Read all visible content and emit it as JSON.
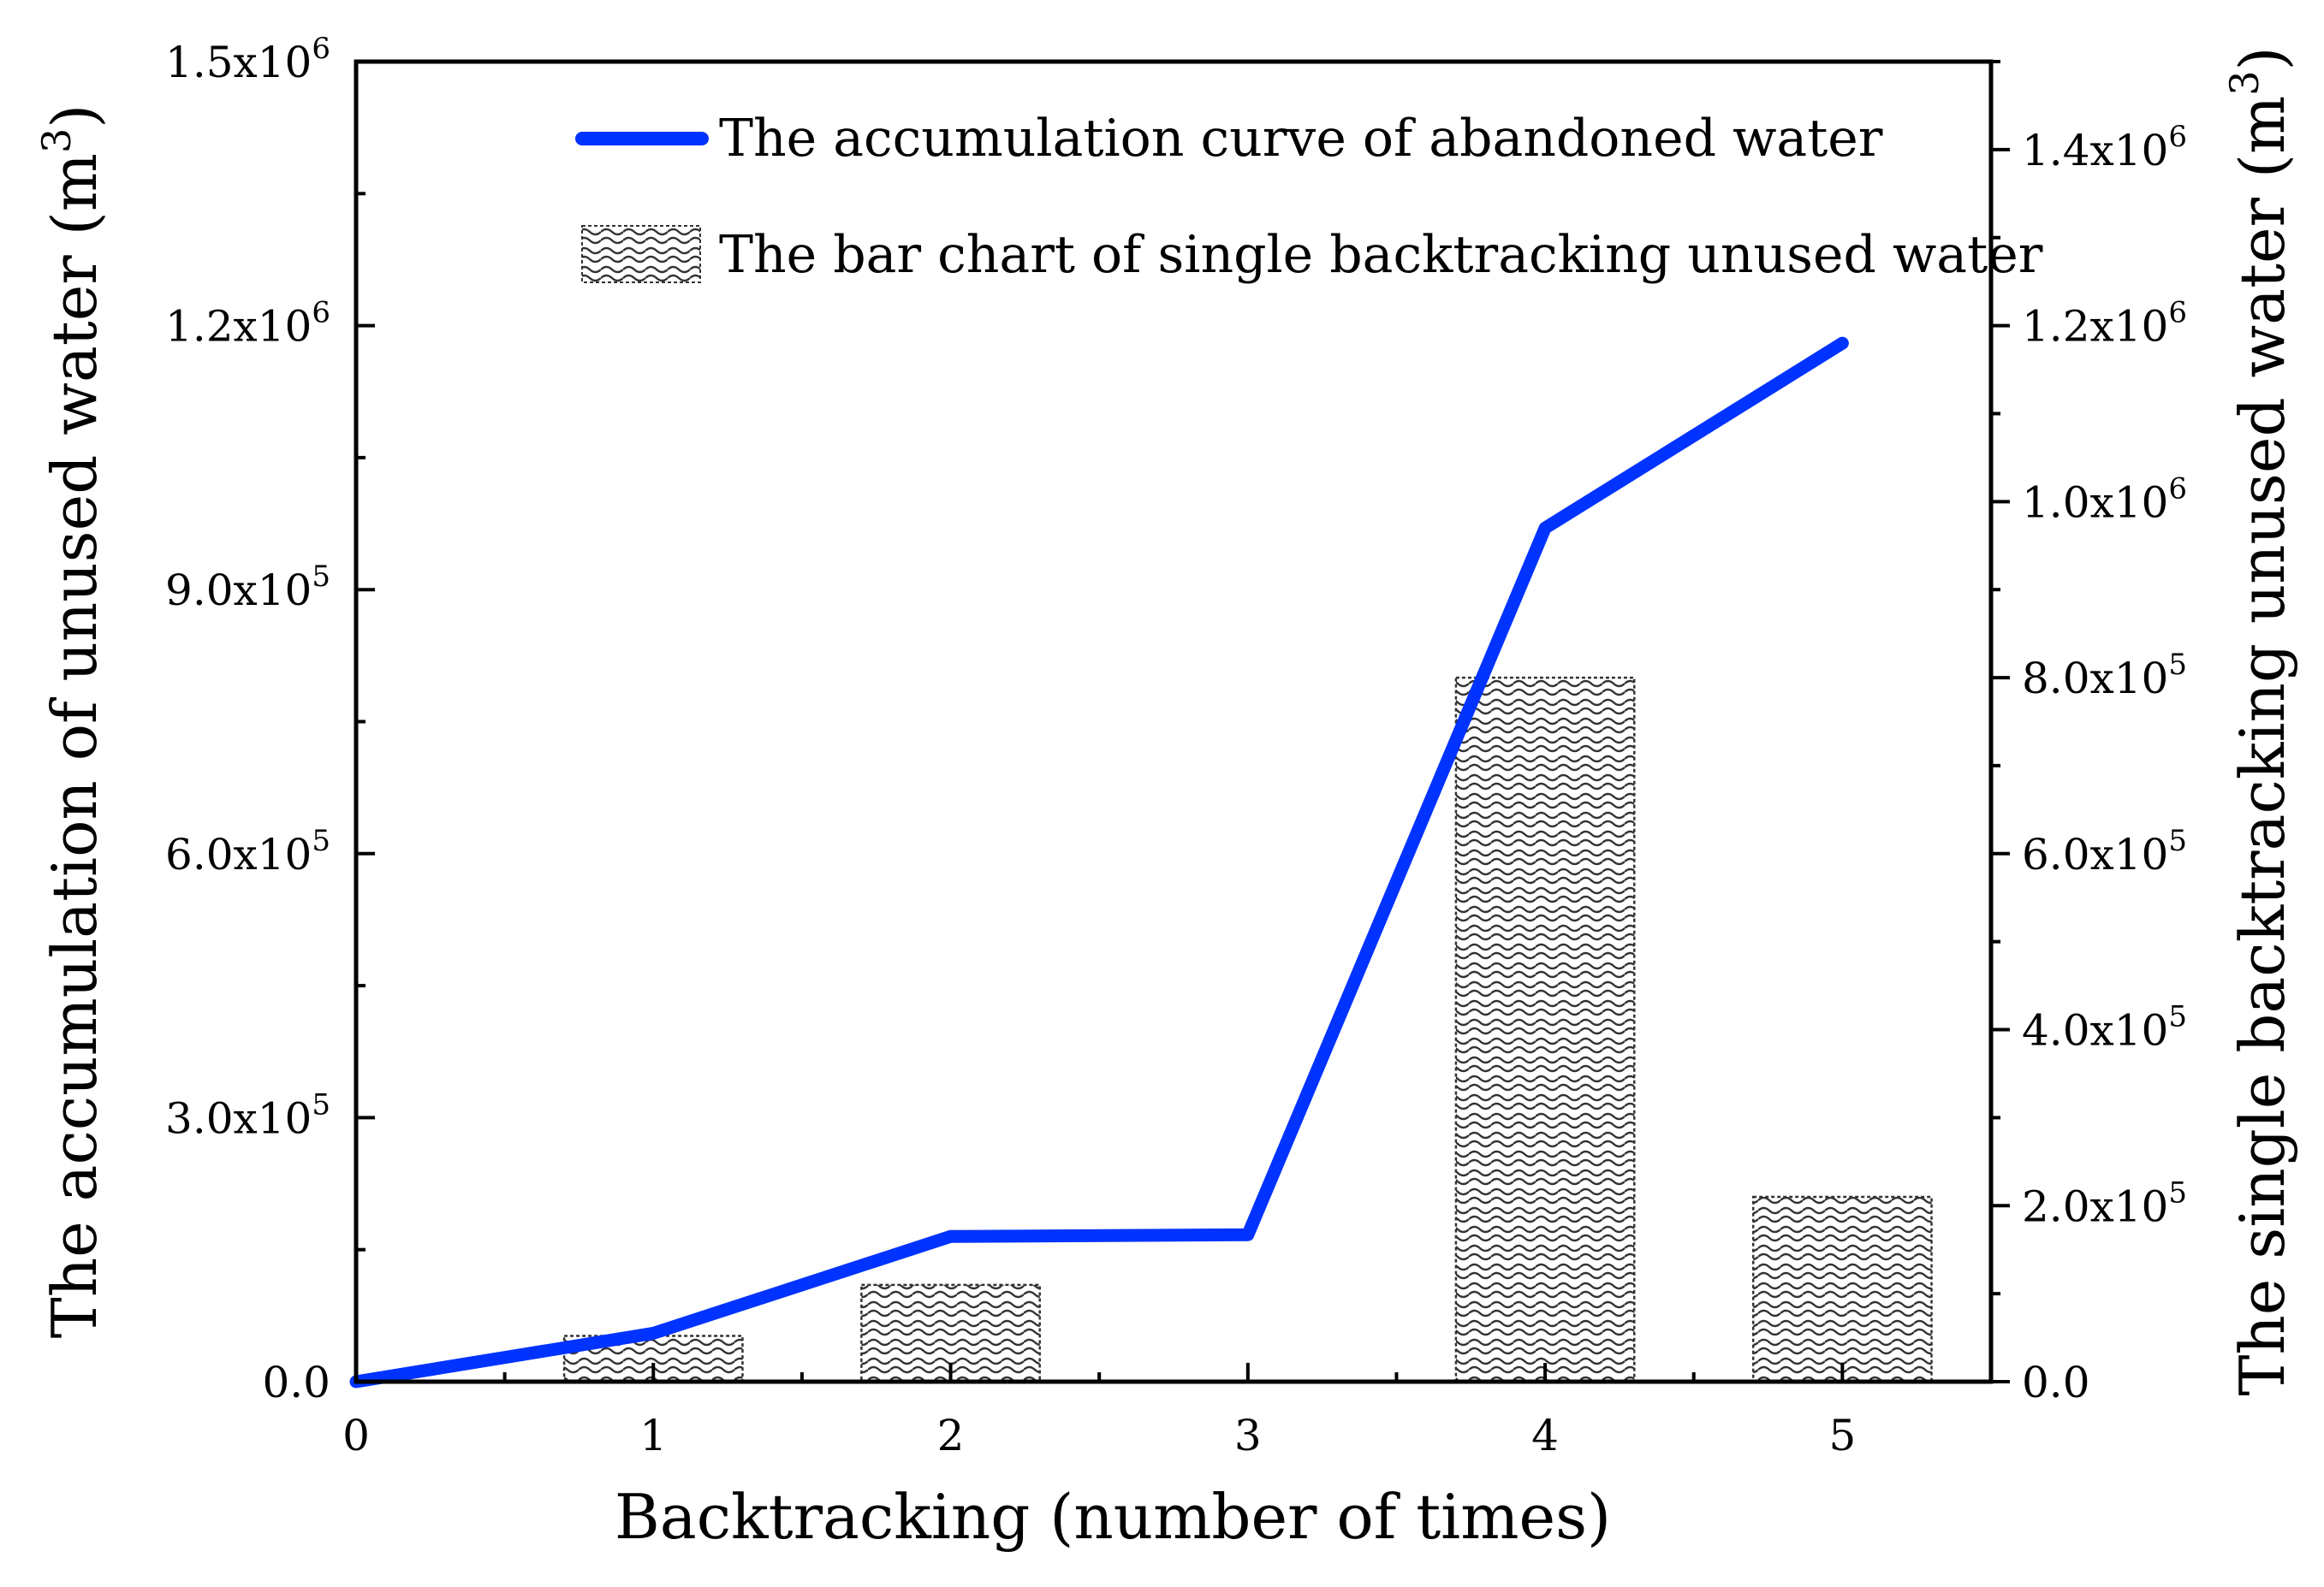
{
  "chart_data": {
    "type": "bar+line",
    "title": "",
    "xlabel": "Backtracking (number of times)",
    "ylabel_left": "The accumulation of unused water (m3)",
    "ylabel_right": "The single backtracking unused water (m3)",
    "xlim": [
      0,
      5.5
    ],
    "ylim_left": [
      0,
      1500000
    ],
    "ylim_right": [
      0,
      1500000
    ],
    "x_ticks": [
      "0",
      "1",
      "2",
      "3",
      "4",
      "5"
    ],
    "y_left_ticks": [
      {
        "value": 0,
        "mantissa": "0.0",
        "exp": ""
      },
      {
        "value": 300000,
        "mantissa": "3.0x10",
        "exp": "5"
      },
      {
        "value": 600000,
        "mantissa": "6.0x10",
        "exp": "5"
      },
      {
        "value": 900000,
        "mantissa": "9.0x10",
        "exp": "5"
      },
      {
        "value": 1200000,
        "mantissa": "1.2x10",
        "exp": "6"
      },
      {
        "value": 1500000,
        "mantissa": "1.5x10",
        "exp": "6"
      }
    ],
    "y_right_ticks": [
      {
        "value": 0,
        "mantissa": "0.0",
        "exp": ""
      },
      {
        "value": 200000,
        "mantissa": "2.0x10",
        "exp": "5"
      },
      {
        "value": 400000,
        "mantissa": "4.0x10",
        "exp": "5"
      },
      {
        "value": 600000,
        "mantissa": "6.0x10",
        "exp": "5"
      },
      {
        "value": 800000,
        "mantissa": "8.0x10",
        "exp": "5"
      },
      {
        "value": 1000000,
        "mantissa": "1.0x10",
        "exp": "6"
      },
      {
        "value": 1200000,
        "mantissa": "1.2x10",
        "exp": "6"
      },
      {
        "value": 1400000,
        "mantissa": "1.4x10",
        "exp": "6"
      }
    ],
    "series": [
      {
        "name": "The accumulation curve of abandoned water",
        "kind": "line",
        "axis": "left",
        "color": "#0033ff",
        "x": [
          0,
          1,
          2,
          3,
          4,
          5
        ],
        "values": [
          0,
          55000,
          165000,
          167000,
          970000,
          1180000
        ]
      },
      {
        "name": "The bar chart of single backtracking unused water",
        "kind": "bar",
        "axis": "right",
        "color": "#555555",
        "x": [
          1,
          2,
          4,
          5
        ],
        "values": [
          52000,
          110000,
          800000,
          210000
        ]
      }
    ],
    "legend_position": "top-center",
    "grid": false
  }
}
